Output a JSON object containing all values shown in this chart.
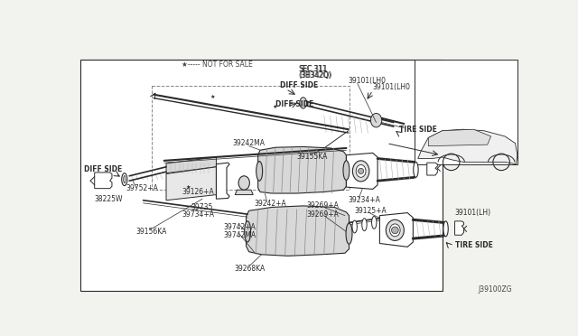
{
  "bg_color": "#f2f2ee",
  "line_color": "#2a2a2a",
  "white": "#ffffff",
  "gray_light": "#d8d8d8",
  "gray_mid": "#b0b0b0",
  "diagram_id": "J39100ZG",
  "fs": 5.5,
  "fsm": 6.0,
  "labels": {
    "not_for_sale": "★----- NOT FOR SALE",
    "sec311": "SEC.311",
    "sec311b": "(3B342Q)",
    "diff_side_top": "DIFF SIDE",
    "diff_side_left": "DIFF SIDE",
    "tire_side_top": "TIRE SIDE",
    "tire_side_bot": "TIRE SIDE",
    "p39101lh0": "39101(LH0",
    "p39101lh": "39101(LH)",
    "p39752": "39752+A",
    "p39126": "39126+A",
    "p38225": "38225W",
    "p39242ma_top": "39242MA",
    "p39242": "39242+A",
    "p39155": "39155KA",
    "p39234": "39234+A",
    "p39269a": "39269+A",
    "p39269b": "39269+A",
    "p39125": "39125+A",
    "p39735": "39735",
    "p39734": "39734+A",
    "p39742": "39742+A",
    "p39742ma": "39742MA",
    "p39156": "39156KA",
    "p39268": "39268KA"
  }
}
